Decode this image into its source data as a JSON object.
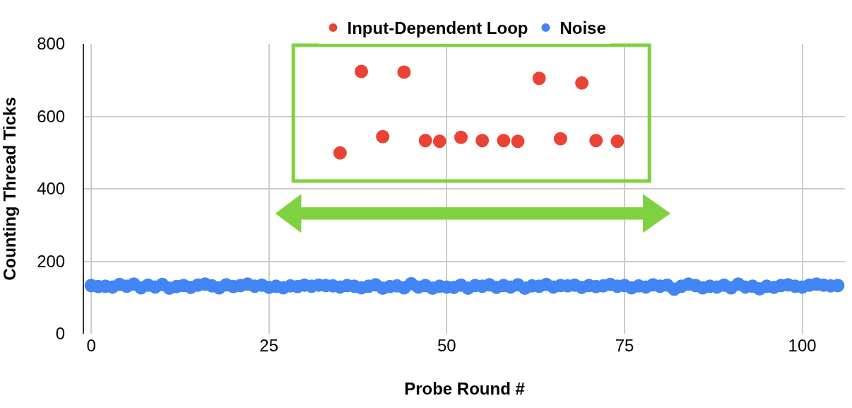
{
  "chart_data": {
    "type": "scatter",
    "xlabel": "Probe Round #",
    "ylabel": "Counting Thread Ticks",
    "xlim": [
      -1,
      106
    ],
    "xticks": [
      0,
      25,
      50,
      75,
      100
    ],
    "ylim": [
      0,
      800
    ],
    "yticks": [
      0,
      200,
      400,
      600,
      800
    ],
    "grid": true,
    "legend": "top",
    "marker": "circle",
    "series": [
      {
        "name": "Input-Dependent Loop",
        "color": "#ea4335",
        "x": [
          35,
          38,
          41,
          44,
          47,
          49,
          52,
          55,
          58,
          60,
          63,
          66,
          69,
          71,
          74
        ],
        "values": [
          499,
          724,
          544,
          722,
          533,
          531,
          542,
          533,
          533,
          531,
          705,
          538,
          692,
          533,
          531
        ]
      },
      {
        "name": "Noise",
        "color": "#4285f4",
        "x": [
          0,
          1,
          2,
          3,
          4,
          5,
          6,
          7,
          8,
          9,
          10,
          11,
          12,
          13,
          14,
          15,
          16,
          17,
          18,
          19,
          20,
          21,
          22,
          23,
          24,
          25,
          26,
          27,
          28,
          29,
          30,
          31,
          32,
          33,
          34,
          35,
          36,
          37,
          38,
          39,
          40,
          41,
          42,
          43,
          44,
          45,
          46,
          47,
          48,
          49,
          50,
          51,
          52,
          53,
          54,
          55,
          56,
          57,
          58,
          59,
          60,
          61,
          62,
          63,
          64,
          65,
          66,
          67,
          68,
          69,
          70,
          71,
          72,
          73,
          74,
          75,
          76,
          77,
          78,
          79,
          80,
          81,
          82,
          83,
          84,
          85,
          86,
          87,
          88,
          89,
          90,
          91,
          92,
          93,
          94,
          95,
          96,
          97,
          98,
          99,
          100,
          101,
          102,
          103,
          104,
          105
        ],
        "values": [
          133,
          130,
          131,
          129,
          136,
          131,
          137,
          127,
          134,
          129,
          136,
          126,
          130,
          133,
          128,
          134,
          137,
          132,
          127,
          135,
          130,
          133,
          137,
          131,
          134,
          128,
          131,
          127,
          132,
          130,
          134,
          131,
          134,
          133,
          132,
          129,
          133,
          131,
          127,
          131,
          135,
          126,
          130,
          132,
          127,
          138,
          129,
          133,
          126,
          131,
          129,
          128,
          134,
          126,
          133,
          131,
          135,
          128,
          133,
          129,
          135,
          126,
          132,
          131,
          136,
          129,
          133,
          132,
          134,
          128,
          133,
          130,
          132,
          136,
          131,
          133,
          127,
          132,
          129,
          135,
          131,
          134,
          123,
          131,
          137,
          133,
          127,
          131,
          129,
          134,
          127,
          137,
          129,
          131,
          124,
          131,
          128,
          133,
          135,
          131,
          129,
          134,
          137,
          134,
          132,
          133
        ]
      }
    ]
  }
}
